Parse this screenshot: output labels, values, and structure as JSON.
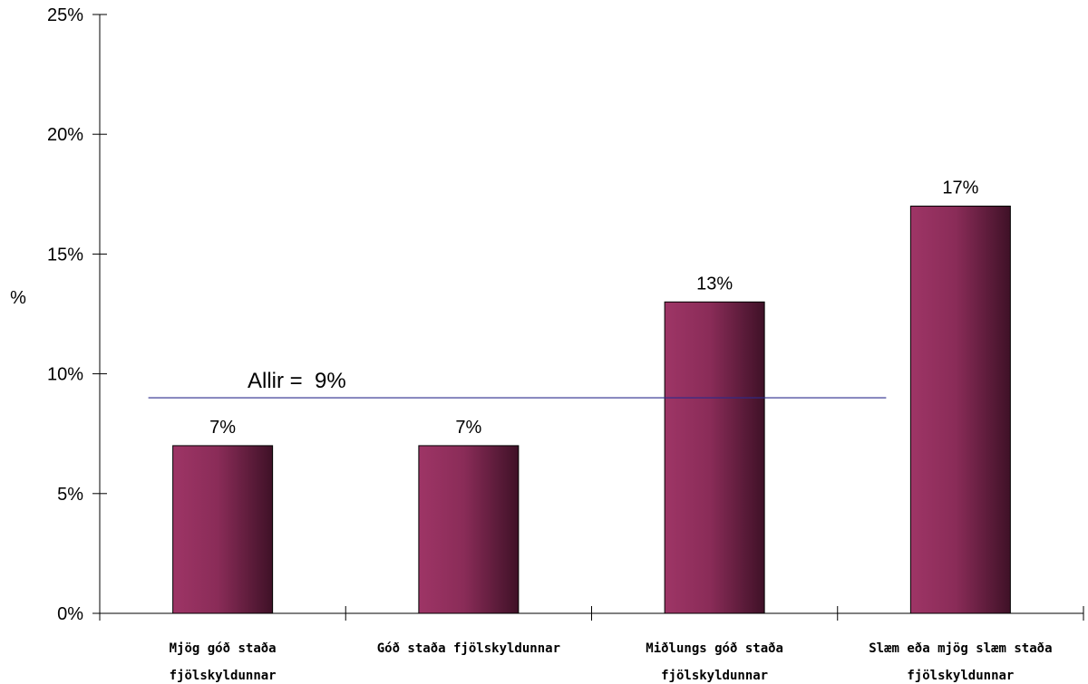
{
  "chart_data": {
    "type": "bar",
    "title": "",
    "xlabel": "",
    "ylabel": "%",
    "ylim": [
      0,
      25
    ],
    "yticks": [
      0,
      5,
      10,
      15,
      20,
      25
    ],
    "ytick_labels": [
      "0%",
      "5%",
      "10%",
      "15%",
      "20%",
      "25%"
    ],
    "categories": [
      [
        "Mjög góð staða",
        "fjölskyldunnar"
      ],
      [
        "Góð staða fjölskyldunnar"
      ],
      [
        "Miðlungs góð staða",
        "fjölskyldunnar"
      ],
      [
        "Slæm eða mjög slæm staða",
        "fjölskyldunnar"
      ]
    ],
    "values": [
      7,
      7,
      13,
      17
    ],
    "data_labels": [
      "7%",
      "7%",
      "13%",
      "17%"
    ],
    "reference_line": {
      "value": 9,
      "label": "Allir =  9%",
      "color": "#2b2b8c"
    },
    "bar_color_light": "#9e3566",
    "bar_color_dark": "#3f1127",
    "grid": false,
    "legend": "none"
  }
}
